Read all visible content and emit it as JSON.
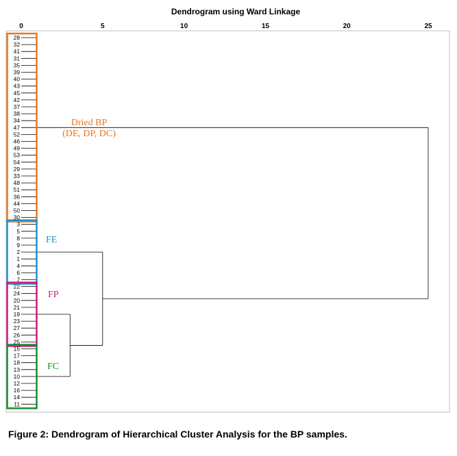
{
  "chart_data": {
    "type": "dendrogram",
    "title": "Dendrogram using Ward Linkage",
    "xlim": [
      0,
      25
    ],
    "xticks": [
      "0",
      "5",
      "10",
      "15",
      "20",
      "25"
    ],
    "leaves": [
      "28",
      "32",
      "41",
      "31",
      "35",
      "39",
      "40",
      "43",
      "45",
      "42",
      "37",
      "38",
      "34",
      "47",
      "52",
      "46",
      "49",
      "53",
      "54",
      "29",
      "33",
      "48",
      "51",
      "36",
      "44",
      "50",
      "30",
      "3",
      "5",
      "8",
      "9",
      "2",
      "1",
      "4",
      "6",
      "7",
      "22",
      "24",
      "20",
      "21",
      "19",
      "23",
      "27",
      "26",
      "25",
      "15",
      "17",
      "18",
      "13",
      "10",
      "12",
      "16",
      "14",
      "11"
    ],
    "merges": [
      {
        "members": "Dried BP",
        "height": 25
      },
      {
        "members": "FE",
        "height": 5
      },
      {
        "members": "FP",
        "height": 3
      },
      {
        "members": "FP+FC",
        "height": 5
      },
      {
        "members": "all",
        "height": 25
      }
    ],
    "groups": [
      {
        "label": "Dried BP",
        "label2": "(DE, DP, DC)",
        "first": 0,
        "last": 26,
        "color": "#E87722"
      },
      {
        "label": "FE",
        "label2": "",
        "first": 27,
        "last": 35,
        "color": "#1E90D0"
      },
      {
        "label": "FP",
        "label2": "",
        "first": 36,
        "last": 44,
        "color": "#CC1A7E"
      },
      {
        "label": "FC",
        "label2": "",
        "first": 45,
        "last": 53,
        "color": "#1A8C2E"
      }
    ]
  },
  "caption": "Figure 2: Dendrogram of Hierarchical Cluster Analysis for the BP samples."
}
